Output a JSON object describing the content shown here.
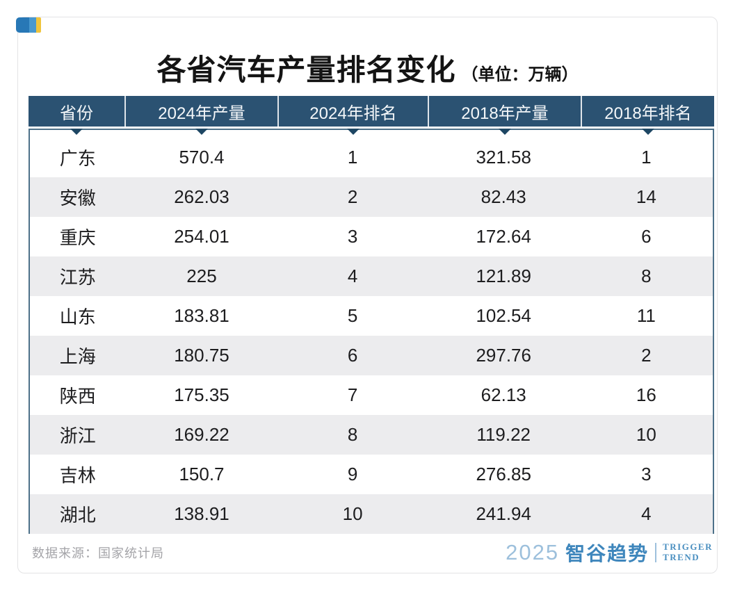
{
  "page": {
    "title": "各省汽车产量排名变化",
    "unit_note": "（单位：万辆）",
    "source": "数据来源：国家统计局"
  },
  "logo": {
    "year": "2025",
    "brand_cn": "智谷趋势",
    "brand_en_line1": "TRIGGER",
    "brand_en_line2": "TREND"
  },
  "table": {
    "columns": [
      "省份",
      "2024年产量",
      "2024年排名",
      "2018年产量",
      "2018年排名"
    ],
    "rows": [
      [
        "广东",
        "570.4",
        "1",
        "321.58",
        "1"
      ],
      [
        "安徽",
        "262.03",
        "2",
        "82.43",
        "14"
      ],
      [
        "重庆",
        "254.01",
        "3",
        "172.64",
        "6"
      ],
      [
        "江苏",
        "225",
        "4",
        "121.89",
        "8"
      ],
      [
        "山东",
        "183.81",
        "5",
        "102.54",
        "11"
      ],
      [
        "上海",
        "180.75",
        "6",
        "297.76",
        "2"
      ],
      [
        "陕西",
        "175.35",
        "7",
        "62.13",
        "16"
      ],
      [
        "浙江",
        "169.22",
        "8",
        "119.22",
        "10"
      ],
      [
        "吉林",
        "150.7",
        "9",
        "276.85",
        "3"
      ],
      [
        "湖北",
        "138.91",
        "10",
        "241.94",
        "4"
      ]
    ]
  },
  "colors": {
    "header_bg": "#2b5272",
    "header_text": "#f4f7f9",
    "triangle": "#1d4663",
    "body_border": "#4d7189",
    "row_alt_bg": "#ececee",
    "cell_text": "#1d1d1f",
    "source_text": "#a4a4a8",
    "logo_blue": "#3e86bc",
    "logo_light_blue": "#9dc0dc",
    "chip_blue_dark": "#2878b6",
    "chip_blue_light": "#4898cf",
    "chip_yellow": "#f0c43c"
  },
  "chart_data": {
    "type": "table",
    "title": "各省汽车产量排名变化",
    "unit": "万辆",
    "columns": [
      "省份",
      "2024年产量",
      "2024年排名",
      "2018年产量",
      "2018年排名"
    ],
    "records": [
      {
        "province": "广东",
        "production_2024": 570.4,
        "rank_2024": 1,
        "production_2018": 321.58,
        "rank_2018": 1
      },
      {
        "province": "安徽",
        "production_2024": 262.03,
        "rank_2024": 2,
        "production_2018": 82.43,
        "rank_2018": 14
      },
      {
        "province": "重庆",
        "production_2024": 254.01,
        "rank_2024": 3,
        "production_2018": 172.64,
        "rank_2018": 6
      },
      {
        "province": "江苏",
        "production_2024": 225,
        "rank_2024": 4,
        "production_2018": 121.89,
        "rank_2018": 8
      },
      {
        "province": "山东",
        "production_2024": 183.81,
        "rank_2024": 5,
        "production_2018": 102.54,
        "rank_2018": 11
      },
      {
        "province": "上海",
        "production_2024": 180.75,
        "rank_2024": 6,
        "production_2018": 297.76,
        "rank_2018": 2
      },
      {
        "province": "陕西",
        "production_2024": 175.35,
        "rank_2024": 7,
        "production_2018": 62.13,
        "rank_2018": 16
      },
      {
        "province": "浙江",
        "production_2024": 169.22,
        "rank_2024": 8,
        "production_2018": 119.22,
        "rank_2018": 10
      },
      {
        "province": "吉林",
        "production_2024": 150.7,
        "rank_2024": 9,
        "production_2018": 276.85,
        "rank_2018": 3
      },
      {
        "province": "湖北",
        "production_2024": 138.91,
        "rank_2024": 10,
        "production_2018": 241.94,
        "rank_2018": 4
      }
    ],
    "source": "国家统计局"
  }
}
